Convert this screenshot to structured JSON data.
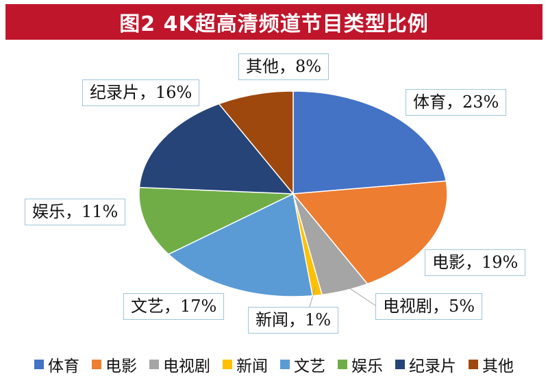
{
  "chart_data": {
    "type": "pie",
    "title": "图2 4K超高清频道节目类型比例",
    "slices": [
      {
        "name": "体育",
        "value": 23,
        "label": "体育，23%",
        "color": "#4472c4"
      },
      {
        "name": "电影",
        "value": 19,
        "label": "电影，19%",
        "color": "#ed7d31"
      },
      {
        "name": "电视剧",
        "value": 5,
        "label": "电视剧，5%",
        "color": "#a5a5a5"
      },
      {
        "name": "新闻",
        "value": 1,
        "label": "新闻，1%",
        "color": "#ffc000"
      },
      {
        "name": "文艺",
        "value": 17,
        "label": "文艺，17%",
        "color": "#5b9bd5"
      },
      {
        "name": "娱乐",
        "value": 11,
        "label": "娱乐，11%",
        "color": "#70ad47"
      },
      {
        "name": "纪录片",
        "value": 16,
        "label": "纪录片，16%",
        "color": "#264478"
      },
      {
        "name": "其他",
        "value": 8,
        "label": "其他，8%",
        "color": "#9e480e"
      }
    ],
    "legend_position": "bottom"
  }
}
